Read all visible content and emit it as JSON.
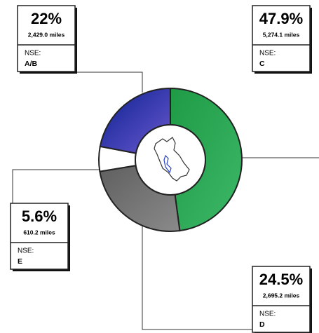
{
  "chart_data": {
    "type": "donut",
    "categories": [
      "C",
      "D",
      "E",
      "A/B"
    ],
    "values": [
      47.9,
      24.5,
      5.6,
      22
    ],
    "value_labels": [
      "47.9%",
      "24.5%",
      "5.6%",
      "22%"
    ],
    "miles": [
      "5,274.1 miles",
      "2,695.2 miles",
      "610.2 miles",
      "2,429.0 miles"
    ],
    "category_prefix": "NSE:",
    "colors": [
      [
        "#1f9a45",
        "#3cb868"
      ],
      [
        "#5f5f5f",
        "#8a8a8a"
      ],
      [
        "#ffffff",
        "#ffffff"
      ],
      [
        "#0a1f8f",
        "#6b5ad0"
      ]
    ]
  }
}
